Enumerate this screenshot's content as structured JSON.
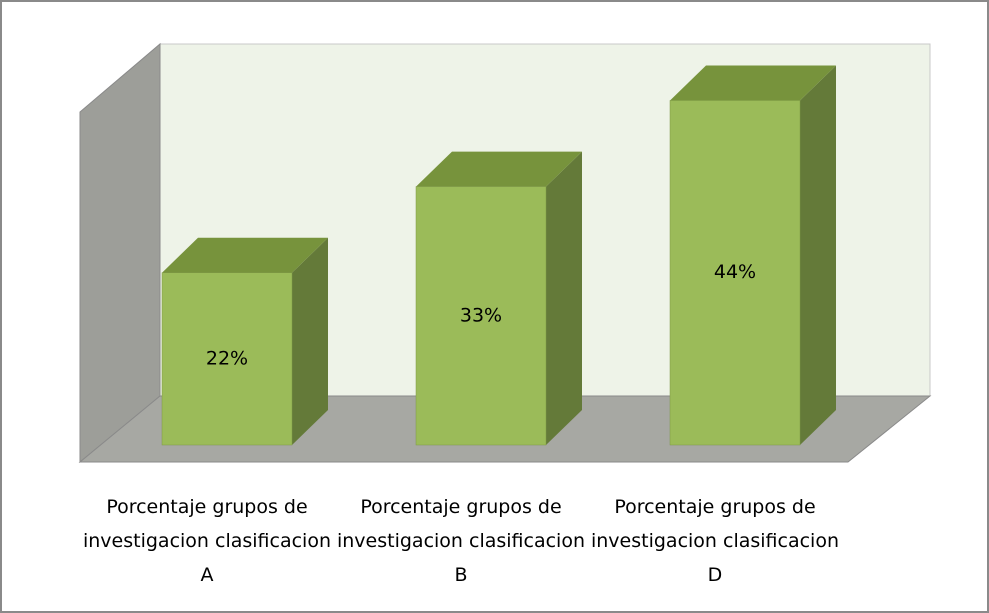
{
  "chart_data": {
    "type": "bar3d",
    "categories": [
      "Porcentaje grupos de investigacion clasificacion A",
      "Porcentaje grupos de investigacion clasificacion B",
      "Porcentaje grupos de investigacion clasificacion D"
    ],
    "values": [
      22,
      33,
      44
    ],
    "value_labels": [
      "22%",
      "33%",
      "44%"
    ],
    "color": "#9bbb59"
  }
}
